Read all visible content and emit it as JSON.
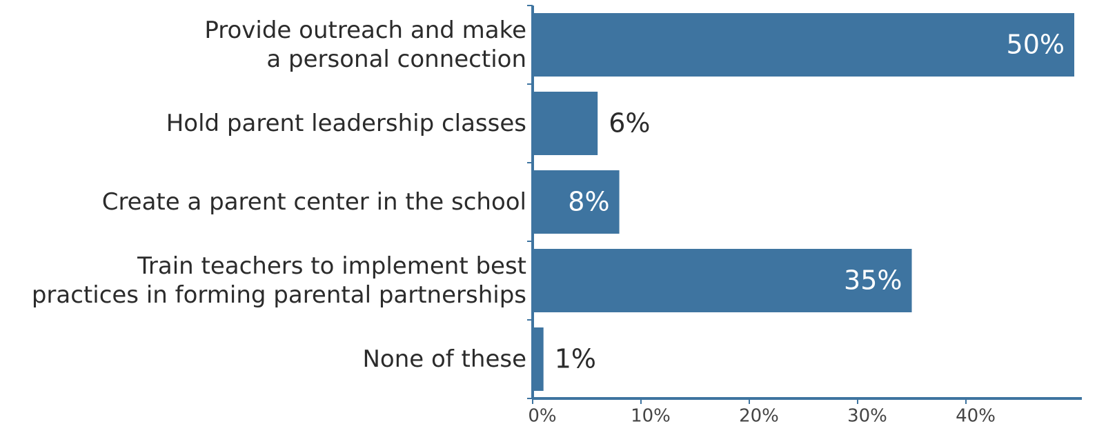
{
  "chart_data": {
    "type": "barh",
    "categories": [
      "Provide outreach and make a personal connection",
      "Hold parent leadership classes",
      "Create a parent center in the school",
      "Train teachers to implement best practices in forming parental partnerships",
      "None of these"
    ],
    "values": [
      50,
      6,
      8,
      35,
      1
    ],
    "value_labels": [
      "50%",
      "6%",
      "8%",
      "35%",
      "1%"
    ],
    "color": "#3e74a0",
    "xlim": [
      0,
      50.7
    ],
    "xticks": [
      {
        "value": 0,
        "label": "0%"
      },
      {
        "value": 10,
        "label": "10%"
      },
      {
        "value": 20,
        "label": "20%"
      },
      {
        "value": 30,
        "label": "30%"
      },
      {
        "value": 40,
        "label": "40%"
      }
    ]
  }
}
